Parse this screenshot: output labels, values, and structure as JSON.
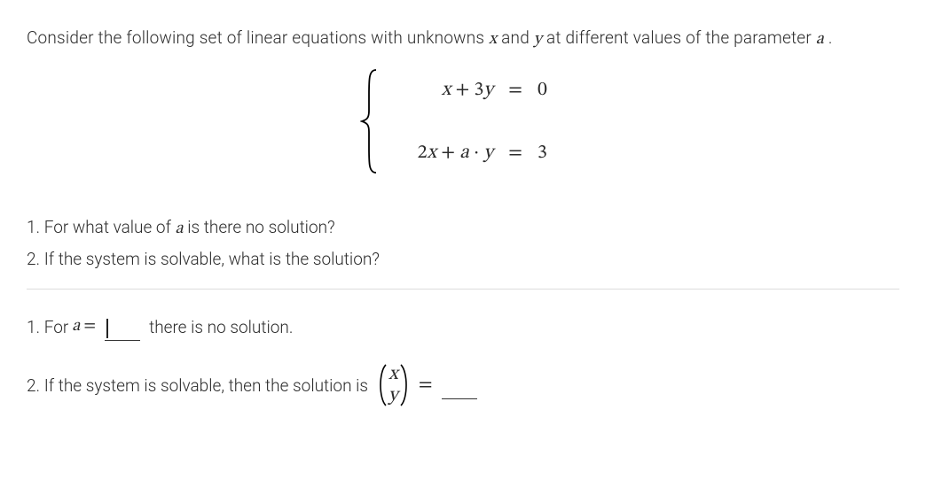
{
  "prompt": {
    "pre": "Consider the following set of linear equations with unknowns ",
    "var_x": "x",
    "mid1": " and ",
    "var_y": "y",
    "mid2": " at different values of the parameter ",
    "var_a": "a",
    "post": " ."
  },
  "system": {
    "eq1": {
      "lhs_html": "<span class='math-var'>x</span> + 3<span class='math-var'>y</span>",
      "rhs": "0"
    },
    "eq2": {
      "lhs_html": "2<span class='math-var'>x</span> + <span class='math-var'>a</span> · <span class='math-var'>y</span>",
      "rhs": "3"
    },
    "eq_sign": "="
  },
  "questions": {
    "q1_pre": "1. For what value of ",
    "q1_var": "a",
    "q1_post": " is there no solution?",
    "q2": "2. If the system is solvable, what is the solution?"
  },
  "answers": {
    "a1_pre": "1. For ",
    "a1_var": "a",
    "a1_eq": " = ",
    "a1_post": " there is no solution.",
    "a2_pre": "2. If the system is solvable, then the solution is",
    "vec_x": "x",
    "vec_y": "y",
    "a2_eq": "="
  },
  "style": {
    "brace_color": "#000000",
    "paren_color": "#000000"
  }
}
